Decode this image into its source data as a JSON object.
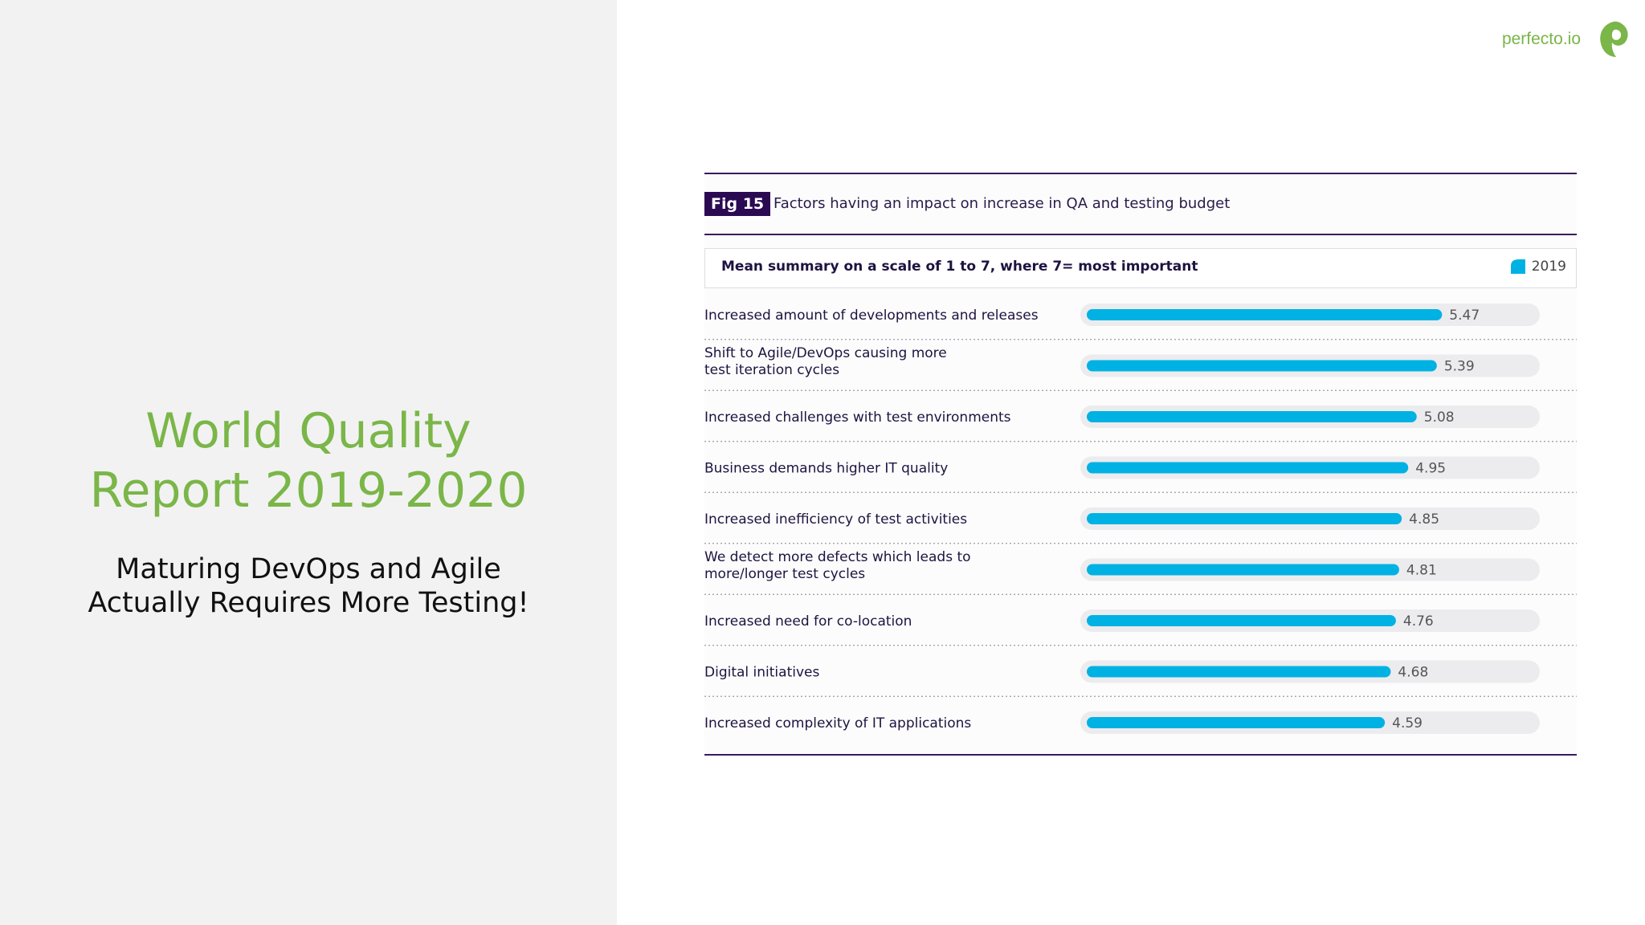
{
  "report": {
    "title_line1": "World Quality",
    "title_line2": "Report 2019-2020",
    "subtitle_line1": "Maturing DevOps and Agile",
    "subtitle_line2": "Actually Requires More Testing!"
  },
  "brand": {
    "name": "perfecto.io",
    "icon": "perfecto-leaf-icon",
    "color": "#7ab648"
  },
  "figure": {
    "badge": "Fig 15",
    "title": "Factors having an impact on increase in QA and testing budget",
    "summary": "Mean summary on a scale of 1 to 7, where 7= most important"
  },
  "colors": {
    "bar": "#00b2e3",
    "track": "#ececef",
    "accent_purple": "#2a0a52",
    "green": "#7ab648"
  },
  "chart_data": {
    "type": "bar",
    "orientation": "horizontal",
    "title": "Factors having an impact on increase in QA and testing budget",
    "categories": [
      [
        "Increased amount of developments and releases"
      ],
      [
        "Shift to Agile/DevOps causing more",
        "test iteration cycles"
      ],
      [
        "Increased challenges with test environments"
      ],
      [
        "Business demands higher IT quality"
      ],
      [
        "Increased inefficiency of test activities"
      ],
      [
        "We detect more defects which leads to",
        "more/longer test cycles"
      ],
      [
        "Increased need for co-location"
      ],
      [
        "Digital initiatives"
      ],
      [
        "Increased complexity of IT applications"
      ]
    ],
    "series": [
      {
        "name": "2019",
        "values": [
          5.47,
          5.39,
          5.08,
          4.95,
          4.85,
          4.81,
          4.76,
          4.68,
          4.59
        ],
        "labels": [
          "5.47",
          "5.39",
          "5.08",
          "4.95",
          "4.85",
          "4.81",
          "4.76",
          "4.68",
          "4.59"
        ]
      }
    ],
    "xlim": [
      0,
      7
    ],
    "legend": "top-right",
    "grid": false
  }
}
